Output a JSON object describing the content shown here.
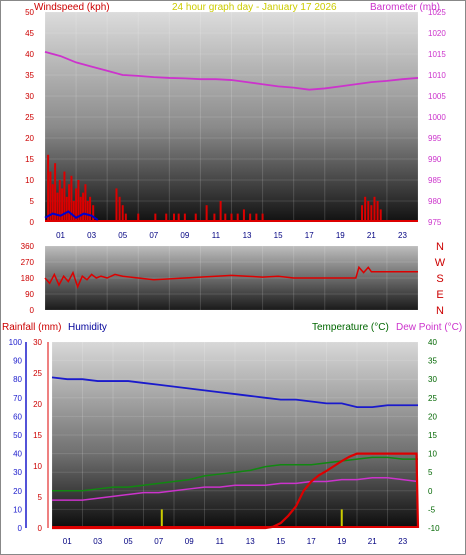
{
  "header": {
    "left_label": "Windspeed (kph)",
    "center_label": "24 hour graph day - January 17 2026",
    "right_label": "Barometer (mb)"
  },
  "bottom_header": {
    "rainfall_label": "Rainfall (mm)",
    "humidity_label": "Humidity",
    "temperature_label": "Temperature (°C)",
    "dewpoint_label": "Dew Point (°C)"
  },
  "hours": [
    "01",
    "03",
    "05",
    "07",
    "09",
    "11",
    "13",
    "15",
    "17",
    "19",
    "21",
    "23"
  ],
  "colors": {
    "wind": "#dd0000",
    "gust": "#0000cc",
    "barometer": "#cc33cc",
    "direction": "#dd0000",
    "humidity": "#1a1acc",
    "temperature": "#118811",
    "dewpoint": "#cc33cc",
    "rain": "#dd0000",
    "rain_rate": "#cccc00",
    "red_text": "#cc0000",
    "yellow_text": "#cccc00",
    "magenta_text": "#cc33cc",
    "blue_text": "#000099",
    "green_text": "#006600"
  },
  "chart_data": [
    {
      "type": "bar",
      "name": "wind",
      "xlim": [
        0,
        24
      ],
      "y_ticks": [
        "0",
        "5",
        "10",
        "15",
        "20",
        "25",
        "30",
        "35",
        "40",
        "45",
        "50"
      ],
      "ylim": [
        0,
        50
      ],
      "y2_ticks": [
        "975",
        "980",
        "985",
        "990",
        "995",
        "1000",
        "1005",
        "1010",
        "1015",
        "1020",
        "1025"
      ],
      "y2lim": [
        975,
        1025
      ],
      "barometer": {
        "x": [
          0,
          1,
          2,
          3,
          4,
          5,
          6,
          7,
          8,
          9,
          10,
          11,
          12,
          13,
          14,
          15,
          16,
          17,
          18,
          19,
          20,
          21,
          22,
          23,
          24
        ],
        "y": [
          1015.5,
          1014.5,
          1013,
          1012,
          1011,
          1010,
          1009.8,
          1009.5,
          1009.3,
          1009.2,
          1009,
          1009,
          1008.8,
          1008.3,
          1007.8,
          1007.3,
          1007,
          1006.5,
          1006.8,
          1007.3,
          1007.8,
          1008.3,
          1008.6,
          1009,
          1009.3
        ]
      },
      "wind_bars": [
        {
          "x": 0.2,
          "y": 16
        },
        {
          "x": 0.35,
          "y": 12
        },
        {
          "x": 0.5,
          "y": 9
        },
        {
          "x": 0.65,
          "y": 14
        },
        {
          "x": 0.8,
          "y": 7
        },
        {
          "x": 0.95,
          "y": 10
        },
        {
          "x": 1.1,
          "y": 8
        },
        {
          "x": 1.25,
          "y": 12
        },
        {
          "x": 1.4,
          "y": 6
        },
        {
          "x": 1.55,
          "y": 9
        },
        {
          "x": 1.7,
          "y": 11
        },
        {
          "x": 1.85,
          "y": 5
        },
        {
          "x": 2.0,
          "y": 8
        },
        {
          "x": 2.15,
          "y": 10
        },
        {
          "x": 2.3,
          "y": 6
        },
        {
          "x": 2.45,
          "y": 7
        },
        {
          "x": 2.6,
          "y": 9
        },
        {
          "x": 2.75,
          "y": 5
        },
        {
          "x": 2.9,
          "y": 6
        },
        {
          "x": 3.1,
          "y": 4
        },
        {
          "x": 4.6,
          "y": 8
        },
        {
          "x": 4.8,
          "y": 6
        },
        {
          "x": 5.0,
          "y": 4
        },
        {
          "x": 5.2,
          "y": 2
        },
        {
          "x": 6.0,
          "y": 2
        },
        {
          "x": 7.1,
          "y": 2
        },
        {
          "x": 7.8,
          "y": 2
        },
        {
          "x": 8.3,
          "y": 2
        },
        {
          "x": 8.6,
          "y": 2
        },
        {
          "x": 9.0,
          "y": 2
        },
        {
          "x": 9.7,
          "y": 2
        },
        {
          "x": 10.4,
          "y": 4
        },
        {
          "x": 10.9,
          "y": 2
        },
        {
          "x": 11.3,
          "y": 5
        },
        {
          "x": 11.6,
          "y": 2
        },
        {
          "x": 12.0,
          "y": 2
        },
        {
          "x": 12.4,
          "y": 2
        },
        {
          "x": 12.8,
          "y": 3
        },
        {
          "x": 13.2,
          "y": 2
        },
        {
          "x": 13.6,
          "y": 2
        },
        {
          "x": 14.0,
          "y": 2
        },
        {
          "x": 20.4,
          "y": 4
        },
        {
          "x": 20.6,
          "y": 6
        },
        {
          "x": 20.8,
          "y": 5
        },
        {
          "x": 21.0,
          "y": 4
        },
        {
          "x": 21.2,
          "y": 6
        },
        {
          "x": 21.4,
          "y": 5
        },
        {
          "x": 21.6,
          "y": 3
        }
      ],
      "gust_line": {
        "x": [
          0,
          0.5,
          1,
          1.5,
          2,
          2.5,
          3,
          3.2,
          3.4
        ],
        "y": [
          1,
          2,
          1.5,
          2.5,
          1,
          2,
          1.5,
          1,
          0.5
        ]
      }
    },
    {
      "type": "line",
      "name": "wind_direction",
      "xlim": [
        0,
        24
      ],
      "y_ticks": [
        "0",
        "90",
        "180",
        "270",
        "360"
      ],
      "ylim": [
        0,
        360
      ],
      "compass": [
        "N",
        "W",
        "S",
        "E",
        "N"
      ],
      "direction": {
        "x": [
          0,
          0.3,
          0.6,
          0.9,
          1.2,
          1.5,
          1.8,
          2.1,
          2.4,
          2.7,
          3,
          3.3,
          3.6,
          4,
          4.5,
          5,
          6,
          7,
          8,
          9,
          10,
          11,
          12,
          13,
          14,
          15,
          16,
          17,
          18,
          19,
          20,
          20.2,
          20.5,
          20.8,
          21,
          21.5,
          22,
          23,
          24
        ],
        "y": [
          180,
          150,
          200,
          140,
          190,
          160,
          210,
          130,
          190,
          170,
          200,
          180,
          190,
          180,
          200,
          190,
          180,
          170,
          175,
          180,
          185,
          190,
          195,
          190,
          185,
          190,
          180,
          180,
          180,
          180,
          180,
          240,
          210,
          240,
          215,
          215,
          215,
          215,
          215
        ]
      }
    },
    {
      "type": "line",
      "name": "humidity_temperature",
      "xlim": [
        0,
        24
      ],
      "humidity_ticks": [
        "0",
        "10",
        "20",
        "30",
        "40",
        "50",
        "60",
        "70",
        "80",
        "90",
        "100"
      ],
      "humidity_lim": [
        0,
        100
      ],
      "rain_ticks": [
        "0",
        "5",
        "10",
        "15",
        "20",
        "25",
        "30"
      ],
      "rain_lim": [
        0,
        30
      ],
      "temp_ticks": [
        "-10",
        "-5",
        "0",
        "5",
        "10",
        "15",
        "20",
        "25",
        "30",
        "35",
        "40"
      ],
      "temp_lim": [
        -10,
        40
      ],
      "humidity": {
        "x": [
          0,
          1,
          2,
          3,
          4,
          5,
          6,
          7,
          8,
          9,
          10,
          11,
          12,
          13,
          14,
          15,
          16,
          17,
          18,
          19,
          20,
          21,
          22,
          23,
          24
        ],
        "y": [
          81,
          80,
          80,
          79,
          79,
          79,
          78,
          77,
          76,
          75,
          74,
          73,
          72,
          71,
          70,
          69,
          69,
          68,
          67,
          67,
          65,
          65,
          66,
          66,
          66
        ]
      },
      "temperature": {
        "x": [
          0,
          1,
          2,
          3,
          4,
          5,
          6,
          7,
          8,
          9,
          10,
          11,
          12,
          13,
          14,
          15,
          16,
          17,
          18,
          19,
          20,
          21,
          22,
          23,
          24
        ],
        "y": [
          0,
          0,
          0,
          0.5,
          1,
          1,
          1.5,
          2,
          2.5,
          3,
          4,
          4.5,
          5,
          5.5,
          6.5,
          7,
          7,
          7,
          7.5,
          8,
          8.5,
          9,
          9,
          8.5,
          8.5
        ]
      },
      "dewpoint": {
        "x": [
          0,
          1,
          2,
          3,
          4,
          5,
          6,
          7,
          8,
          9,
          10,
          11,
          12,
          13,
          14,
          15,
          16,
          17,
          18,
          19,
          20,
          21,
          22,
          23,
          24
        ],
        "y": [
          -2.5,
          -2.5,
          -2.5,
          -2,
          -1.5,
          -1,
          -0.5,
          -0.5,
          0,
          0.5,
          1,
          1,
          1.5,
          1.5,
          1.5,
          2,
          2,
          2.5,
          2.5,
          3,
          3,
          3.5,
          3.5,
          3,
          2.5
        ]
      },
      "rainfall": {
        "x": [
          0,
          14,
          14.5,
          15,
          15.5,
          16,
          16.5,
          17,
          17.5,
          18,
          18.5,
          19,
          19.5,
          20,
          21,
          22,
          23,
          23.9,
          24
        ],
        "y": [
          0,
          0,
          0.2,
          0.8,
          2,
          3.5,
          6,
          7.5,
          8.5,
          9.2,
          10,
          10.8,
          11.5,
          12,
          12,
          12,
          12,
          12,
          0
        ]
      },
      "rain_rate": [
        {
          "x": 7.2,
          "y": 3
        },
        {
          "x": 19.0,
          "y": 3
        }
      ]
    }
  ]
}
